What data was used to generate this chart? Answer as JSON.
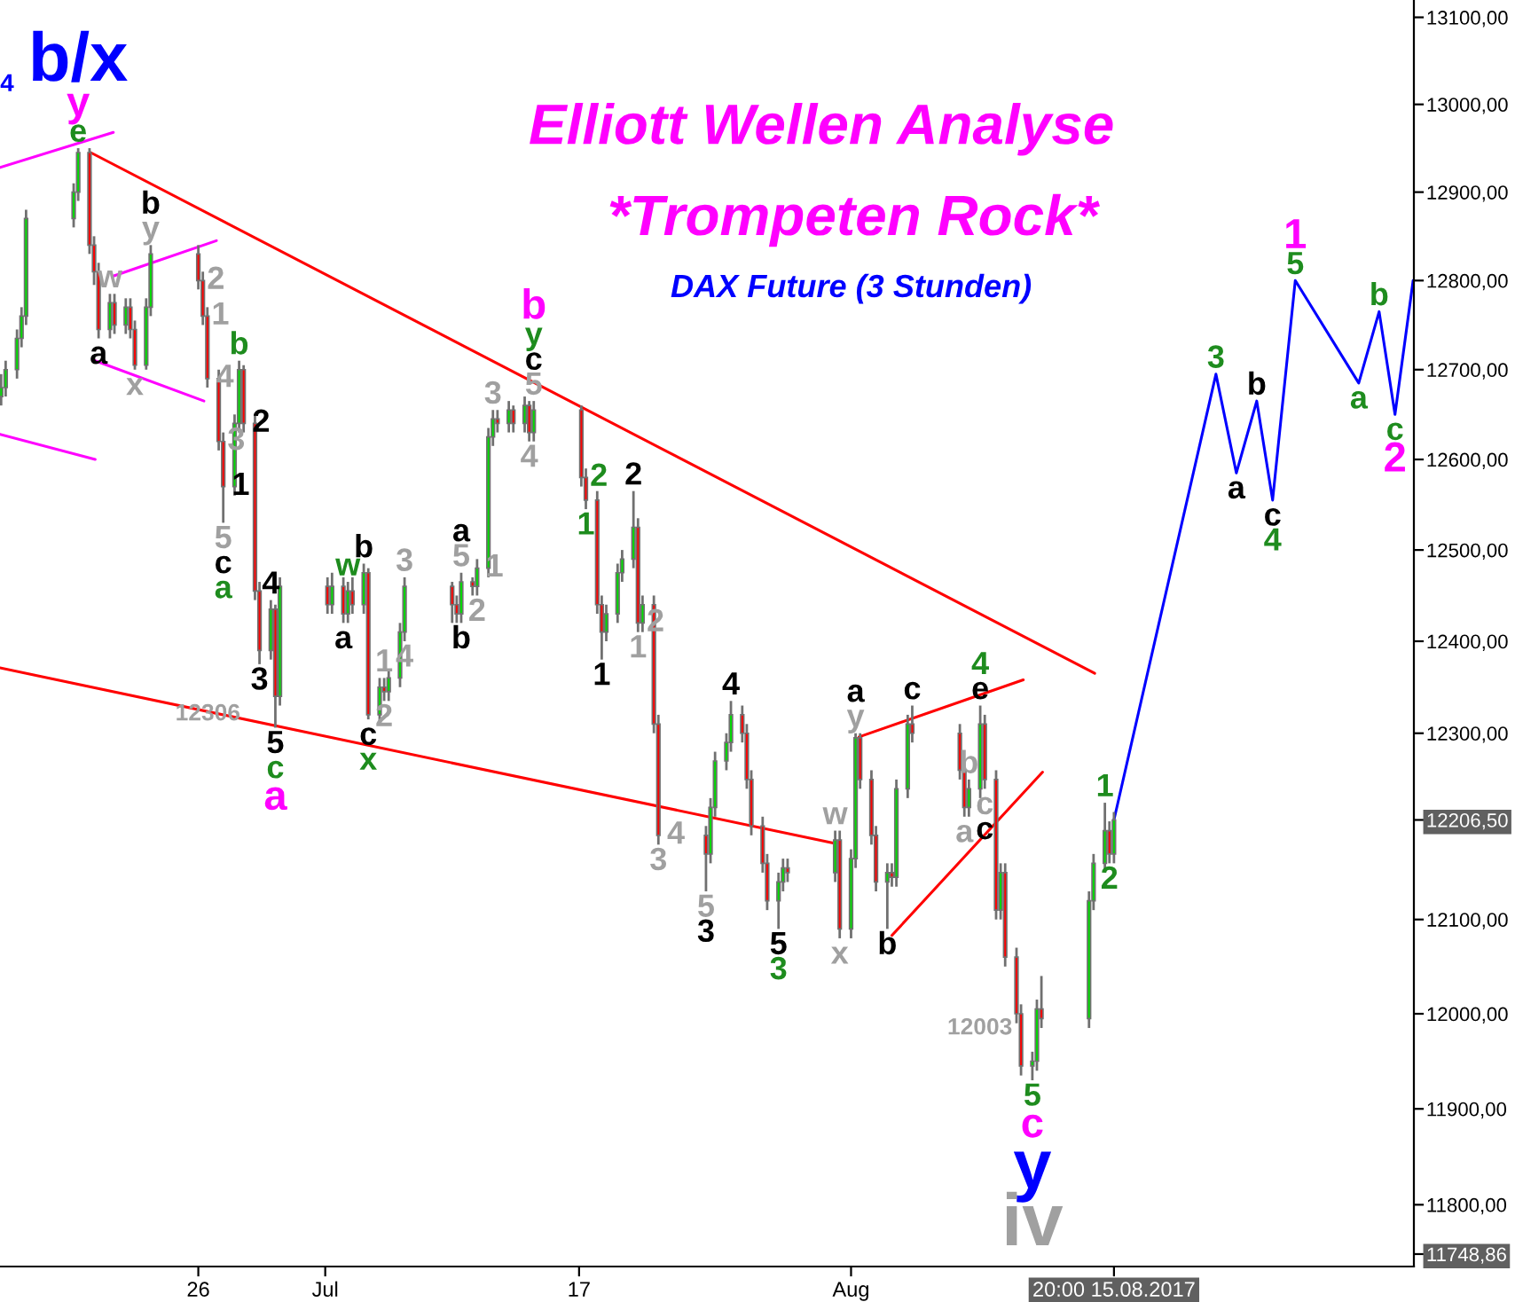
{
  "chart_data": {
    "type": "candlestick",
    "title": "Elliott Wellen Analyse",
    "subtitle": "*Trompeten Rock*",
    "x": [
      "2017-06-15T11:00",
      "2017-06-15T17:00",
      "2017-06-16T08:00",
      "2017-06-16T14:00",
      "2017-06-16T20:00",
      "2017-06-19T11:00",
      "2017-06-19T17:00",
      "2017-06-20T08:00",
      "2017-06-20T14:00",
      "2017-06-20T20:00",
      "2017-06-21T11:00",
      "2017-06-21T17:00",
      "2017-06-22T08:00",
      "2017-06-22T14:00",
      "2017-06-22T20:00",
      "2017-06-23T11:00",
      "2017-06-23T17:00",
      "2017-06-26T08:00",
      "2017-06-26T14:00",
      "2017-06-26T20:00",
      "2017-06-27T11:00",
      "2017-06-27T17:00",
      "2017-06-28T08:00",
      "2017-06-28T14:00",
      "2017-06-28T20:00",
      "2017-06-29T11:00",
      "2017-06-29T17:00",
      "2017-06-30T08:00",
      "2017-06-30T14:00",
      "2017-06-30T20:00",
      "2017-07-03T11:00",
      "2017-07-03T17:00",
      "2017-07-04T08:00",
      "2017-07-04T14:00",
      "2017-07-04T20:00",
      "2017-07-05T11:00",
      "2017-07-05T17:00",
      "2017-07-06T08:00",
      "2017-07-06T14:00",
      "2017-07-06T20:00",
      "2017-07-07T11:00",
      "2017-07-07T17:00",
      "2017-07-10T08:00",
      "2017-07-10T14:00",
      "2017-07-10T20:00",
      "2017-07-11T11:00",
      "2017-07-11T17:00",
      "2017-07-12T08:00",
      "2017-07-12T14:00",
      "2017-07-12T20:00",
      "2017-07-13T11:00",
      "2017-07-13T17:00",
      "2017-07-14T08:00",
      "2017-07-14T14:00",
      "2017-07-14T20:00",
      "2017-07-17T11:00",
      "2017-07-17T17:00",
      "2017-07-18T08:00",
      "2017-07-18T14:00",
      "2017-07-18T20:00",
      "2017-07-19T11:00",
      "2017-07-19T17:00",
      "2017-07-20T08:00",
      "2017-07-20T14:00",
      "2017-07-20T20:00",
      "2017-07-21T11:00",
      "2017-07-21T17:00",
      "2017-07-24T08:00",
      "2017-07-24T14:00",
      "2017-07-24T20:00",
      "2017-07-25T11:00",
      "2017-07-25T17:00",
      "2017-07-26T08:00",
      "2017-07-26T14:00",
      "2017-07-26T20:00",
      "2017-07-27T11:00",
      "2017-07-27T17:00",
      "2017-07-28T08:00",
      "2017-07-28T14:00",
      "2017-07-28T20:00",
      "2017-07-31T11:00",
      "2017-07-31T17:00",
      "2017-08-01T08:00",
      "2017-08-01T14:00",
      "2017-08-01T20:00",
      "2017-08-02T11:00",
      "2017-08-02T17:00",
      "2017-08-03T08:00",
      "2017-08-03T14:00",
      "2017-08-03T20:00",
      "2017-08-04T11:00",
      "2017-08-04T17:00",
      "2017-08-07T08:00",
      "2017-08-07T14:00",
      "2017-08-07T20:00",
      "2017-08-08T11:00",
      "2017-08-08T17:00",
      "2017-08-09T08:00",
      "2017-08-09T14:00",
      "2017-08-09T20:00",
      "2017-08-10T11:00",
      "2017-08-10T17:00",
      "2017-08-11T08:00",
      "2017-08-11T14:00",
      "2017-08-11T20:00",
      "2017-08-14T11:00",
      "2017-08-14T17:00",
      "2017-08-15T08:00",
      "2017-08-15T14:00",
      "2017-08-15T20:00"
    ],
    "ohlc": [
      [
        12670,
        12695,
        12660,
        12680
      ],
      [
        12680,
        12710,
        12670,
        12700
      ],
      [
        12700,
        12745,
        12690,
        12735
      ],
      [
        12735,
        12770,
        12725,
        12760
      ],
      [
        12760,
        12880,
        12750,
        12870
      ],
      [
        12870,
        12910,
        12860,
        12900
      ],
      [
        12900,
        12950,
        12890,
        12945
      ],
      [
        12945,
        12950,
        12830,
        12840
      ],
      [
        12840,
        12850,
        12795,
        12810
      ],
      [
        12810,
        12820,
        12735,
        12745
      ],
      [
        12745,
        12785,
        12735,
        12775
      ],
      [
        12775,
        12785,
        12740,
        12750
      ],
      [
        12750,
        12780,
        12740,
        12770
      ],
      [
        12770,
        12780,
        12735,
        12745
      ],
      [
        12745,
        12755,
        12700,
        12705
      ],
      [
        12705,
        12780,
        12700,
        12770
      ],
      [
        12770,
        12840,
        12760,
        12830
      ],
      [
        12830,
        12840,
        12790,
        12800
      ],
      [
        12800,
        12810,
        12750,
        12760
      ],
      [
        12760,
        12770,
        12680,
        12690
      ],
      [
        12690,
        12700,
        12610,
        12620
      ],
      [
        12620,
        12630,
        12530,
        12570
      ],
      [
        12570,
        12650,
        12560,
        12640
      ],
      [
        12640,
        12710,
        12630,
        12700
      ],
      [
        12700,
        12705,
        12630,
        12640
      ],
      [
        12640,
        12650,
        12445,
        12455
      ],
      [
        12455,
        12465,
        12375,
        12390
      ],
      [
        12390,
        12445,
        12380,
        12435
      ],
      [
        12435,
        12440,
        12306,
        12340
      ],
      [
        12340,
        12470,
        12330,
        12460
      ],
      [
        12460,
        12470,
        12430,
        12440
      ],
      [
        12440,
        12475,
        12430,
        12460
      ],
      [
        12460,
        12470,
        12420,
        12430
      ],
      [
        12430,
        12465,
        12420,
        12455
      ],
      [
        12455,
        12470,
        12430,
        12440
      ],
      [
        12440,
        12485,
        12430,
        12475
      ],
      [
        12475,
        12480,
        12315,
        12320
      ],
      [
        12320,
        12360,
        12310,
        12350
      ],
      [
        12350,
        12360,
        12335,
        12345
      ],
      [
        12345,
        12370,
        12335,
        12360
      ],
      [
        12360,
        12420,
        12350,
        12410
      ],
      [
        12410,
        12470,
        12400,
        12460
      ],
      [
        12460,
        12465,
        12420,
        12440
      ],
      [
        12440,
        12450,
        12420,
        12430
      ],
      [
        12430,
        12475,
        12420,
        12465
      ],
      [
        12465,
        12470,
        12450,
        12460
      ],
      [
        12460,
        12490,
        12450,
        12480
      ],
      [
        12480,
        12635,
        12470,
        12625
      ],
      [
        12625,
        12655,
        12615,
        12645
      ],
      [
        12645,
        12655,
        12630,
        12640
      ],
      [
        12640,
        12665,
        12630,
        12655
      ],
      [
        12655,
        12660,
        12630,
        12640
      ],
      [
        12640,
        12670,
        12630,
        12660
      ],
      [
        12660,
        12665,
        12620,
        12630
      ],
      [
        12630,
        12665,
        12620,
        12655
      ],
      [
        12655,
        12660,
        12570,
        12580
      ],
      [
        12580,
        12590,
        12545,
        12555
      ],
      [
        12555,
        12565,
        12430,
        12440
      ],
      [
        12440,
        12450,
        12380,
        12410
      ],
      [
        12410,
        12440,
        12400,
        12430
      ],
      [
        12430,
        12485,
        12420,
        12475
      ],
      [
        12475,
        12500,
        12465,
        12490
      ],
      [
        12490,
        12565,
        12480,
        12525
      ],
      [
        12525,
        12535,
        12410,
        12420
      ],
      [
        12420,
        12450,
        12410,
        12440
      ],
      [
        12440,
        12450,
        12300,
        12310
      ],
      [
        12310,
        12320,
        12180,
        12190
      ],
      [
        12190,
        12200,
        12130,
        12170
      ],
      [
        12170,
        12230,
        12160,
        12220
      ],
      [
        12220,
        12280,
        12210,
        12270
      ],
      [
        12270,
        12300,
        12260,
        12290
      ],
      [
        12290,
        12335,
        12280,
        12320
      ],
      [
        12320,
        12330,
        12290,
        12300
      ],
      [
        12300,
        12310,
        12240,
        12250
      ],
      [
        12250,
        12260,
        12190,
        12200
      ],
      [
        12200,
        12210,
        12150,
        12160
      ],
      [
        12160,
        12170,
        12110,
        12120
      ],
      [
        12120,
        12150,
        12090,
        12140
      ],
      [
        12140,
        12165,
        12130,
        12155
      ],
      [
        12155,
        12165,
        12140,
        12150
      ],
      [
        12150,
        12195,
        12140,
        12185
      ],
      [
        12185,
        12195,
        12080,
        12090
      ],
      [
        12090,
        12175,
        12080,
        12165
      ],
      [
        12165,
        12300,
        12155,
        12295
      ],
      [
        12295,
        12300,
        12240,
        12250
      ],
      [
        12250,
        12260,
        12180,
        12190
      ],
      [
        12190,
        12200,
        12130,
        12140
      ],
      [
        12140,
        12160,
        12090,
        12150
      ],
      [
        12150,
        12160,
        12135,
        12145
      ],
      [
        12145,
        12250,
        12135,
        12240
      ],
      [
        12240,
        12320,
        12230,
        12310
      ],
      [
        12310,
        12330,
        12290,
        12300
      ],
      [
        12300,
        12310,
        12250,
        12260
      ],
      [
        12260,
        12270,
        12210,
        12220
      ],
      [
        12220,
        12250,
        12210,
        12240
      ],
      [
        12240,
        12330,
        12230,
        12310
      ],
      [
        12310,
        12320,
        12240,
        12250
      ],
      [
        12250,
        12260,
        12100,
        12110
      ],
      [
        12110,
        12160,
        12100,
        12150
      ],
      [
        12150,
        12160,
        12050,
        12060
      ],
      [
        12060,
        12070,
        11990,
        12000
      ],
      [
        12000,
        12010,
        11935,
        11945
      ],
      [
        11945,
        11960,
        11930,
        11950
      ],
      [
        11950,
        12015,
        11940,
        12005
      ],
      [
        12005,
        12040,
        11985,
        11995
      ],
      [
        11995,
        12130,
        11985,
        12120
      ],
      [
        12120,
        12170,
        12110,
        12160
      ],
      [
        12160,
        12225,
        12150,
        12195
      ],
      [
        12195,
        12205,
        12160,
        12170
      ],
      [
        12170,
        12215,
        12160,
        12206.5
      ]
    ],
    "series": [
      {
        "type": "line",
        "color": "#0000ff",
        "x": [
          "2017-08-15T20:00",
          "2017-08-21T11:00",
          "2017-08-22T14:00",
          "2017-08-23T17:00",
          "2017-08-24T14:00",
          "2017-08-25T20:00",
          "2017-08-29T08:00",
          "2017-08-30T11:00",
          "2017-08-31T08:00",
          "2017-09-01T08:00"
        ],
        "values": [
          12206.5,
          12695,
          12585,
          12665,
          12555,
          12800,
          12685,
          12765,
          12650,
          12800
        ]
      },
      {
        "type": "line",
        "color": "#ff0000",
        "x": [
          "2017-06-20T09:30",
          "2017-08-14T18:30"
        ],
        "values": [
          12945,
          12365
        ]
      },
      {
        "type": "line",
        "color": "#ff0000",
        "x": [
          "2017-06-15T09:30",
          "2017-07-31T12:30"
        ],
        "values": [
          12371,
          12181
        ]
      },
      {
        "type": "line",
        "color": "#ff0000",
        "x": [
          "2017-08-01T18:30",
          "2017-08-10T20:00"
        ],
        "values": [
          12296,
          12358
        ]
      },
      {
        "type": "line",
        "color": "#ff0000",
        "x": [
          "2017-08-03T14:00",
          "2017-08-11T21:30"
        ],
        "values": [
          12083,
          12258
        ]
      },
      {
        "type": "line",
        "color": "#ff00ff",
        "x": [
          "2017-06-15T09:30",
          "2017-06-21T15:30"
        ],
        "values": [
          12928,
          12968
        ]
      },
      {
        "type": "line",
        "color": "#ff00ff",
        "x": [
          "2017-06-21T15:30",
          "2017-06-27T08:00"
        ],
        "values": [
          12805,
          12845
        ]
      },
      {
        "type": "line",
        "color": "#ff00ff",
        "x": [
          "2017-06-20T15:30",
          "2017-06-26T15:30"
        ],
        "values": [
          12710,
          12665
        ]
      },
      {
        "type": "line",
        "color": "#ff00ff",
        "x": [
          "2017-06-15T09:30",
          "2017-06-20T15:30"
        ],
        "values": [
          12628,
          12600
        ]
      }
    ],
    "log": true,
    "xlim": [
      "2017-06-15T09:30",
      "2017-09-01T09:00"
    ],
    "ylim": [
      11736,
      13120
    ],
    "xticks": [
      {
        "value": "2017-06-26T08:00",
        "label": "26"
      },
      {
        "value": "2017-07-03T08:00",
        "label": "Jul"
      },
      {
        "value": "2017-07-17T08:00",
        "label": "17"
      },
      {
        "value": "2017-08-01T08:00",
        "label": "Aug"
      },
      {
        "value": "2017-08-15T20:00",
        "label": "20:00 15.08.2017"
      }
    ],
    "yticks": [
      {
        "value": 11748.86,
        "label": "11748,86"
      },
      {
        "value": 11800,
        "label": "11800,00"
      },
      {
        "value": 11900,
        "label": "11900,00"
      },
      {
        "value": 12000,
        "label": "12000,00"
      },
      {
        "value": 12100,
        "label": "12100,00"
      },
      {
        "value": 12206.5,
        "label": "12206,50"
      },
      {
        "value": 12300,
        "label": "12300,00"
      },
      {
        "value": 12400,
        "label": "12400,00"
      },
      {
        "value": 12500,
        "label": "12500,00"
      },
      {
        "value": 12600,
        "label": "12600,00"
      },
      {
        "value": 12700,
        "label": "12700,00"
      },
      {
        "value": 12800,
        "label": "12800,00"
      },
      {
        "value": 12900,
        "label": "12900,00"
      },
      {
        "value": 13000,
        "label": "13000,00"
      },
      {
        "value": 13100,
        "label": "13100,00"
      }
    ],
    "annotations": [
      "DAX Future (3 Stunden)",
      "4",
      "12306",
      "12003",
      {
        "text": "e",
        "x": "2017-06-19T17:00",
        "y": 12950
      },
      {
        "text": "y",
        "x": "2017-06-19T17:00",
        "y": 12950
      },
      {
        "text": "b/x",
        "x": "2017-06-19T17:00",
        "y": 12950
      },
      {
        "text": "y",
        "x": "2017-06-23T17:00",
        "y": 12840
      },
      {
        "text": "b",
        "x": "2017-06-23T17:00",
        "y": 12840
      },
      {
        "text": "w",
        "x": "2017-06-21T11:00",
        "y": 12785
      },
      {
        "text": "a",
        "x": "2017-06-20T20:00",
        "y": 12735
      },
      {
        "text": "x",
        "x": "2017-06-22T20:00",
        "y": 12700
      },
      {
        "text": "2",
        "x": "2017-06-26T08:00",
        "y": 12800
      },
      {
        "text": "1",
        "x": "2017-06-26T14:00",
        "y": 12760
      },
      {
        "text": "4",
        "x": "2017-06-26T20:00",
        "y": 12690
      },
      {
        "text": "3",
        "x": "2017-06-27T11:00",
        "y": 12620
      },
      {
        "text": "5",
        "x": "2017-06-27T17:00",
        "y": 12530
      },
      {
        "text": "c",
        "x": "2017-06-27T17:00",
        "y": 12530
      },
      {
        "text": "a",
        "x": "2017-06-27T17:00",
        "y": 12530
      },
      {
        "text": "1",
        "x": "2017-06-27T17:00",
        "y": 12570
      },
      {
        "text": "b",
        "x": "2017-06-28T14:00",
        "y": 12710
      },
      {
        "text": "2",
        "x": "2017-06-28T20:00",
        "y": 12640
      },
      {
        "text": "4",
        "x": "2017-06-30T08:00",
        "y": 12445
      },
      {
        "text": "3",
        "x": "2017-06-29T17:00",
        "y": 12375
      },
      {
        "text": "5",
        "x": "2017-06-30T14:00",
        "y": 12306
      },
      {
        "text": "c",
        "x": "2017-06-30T14:00",
        "y": 12306
      },
      {
        "text": "a",
        "x": "2017-06-30T14:00",
        "y": 12306
      },
      {
        "text": "w",
        "x": "2017-07-04T14:00",
        "y": 12465
      },
      {
        "text": "b",
        "x": "2017-07-05T11:00",
        "y": 12485
      },
      {
        "text": "a",
        "x": "2017-07-04T08:00",
        "y": 12420
      },
      {
        "text": "c",
        "x": "2017-07-05T17:00",
        "y": 12315
      },
      {
        "text": "x",
        "x": "2017-07-05T17:00",
        "y": 12315
      },
      {
        "text": "1",
        "x": "2017-07-06T14:00",
        "y": 12360
      },
      {
        "text": "2",
        "x": "2017-07-06T14:00",
        "y": 12335
      },
      {
        "text": "3",
        "x": "2017-07-07T17:00",
        "y": 12470
      },
      {
        "text": "4",
        "x": "2017-07-07T17:00",
        "y": 12400
      },
      {
        "text": "5",
        "x": "2017-07-10T20:00",
        "y": 12475
      },
      {
        "text": "a",
        "x": "2017-07-10T20:00",
        "y": 12475
      },
      {
        "text": "b",
        "x": "2017-07-10T20:00",
        "y": 12420
      },
      {
        "text": "1",
        "x": "2017-07-11T17:00",
        "y": 12480
      },
      {
        "text": "2",
        "x": "2017-07-11T17:00",
        "y": 12450
      },
      {
        "text": "3",
        "x": "2017-07-12T14:00",
        "y": 12655
      },
      {
        "text": "5",
        "x": "2017-07-14T20:00",
        "y": 12665
      },
      {
        "text": "c",
        "x": "2017-07-14T20:00",
        "y": 12665
      },
      {
        "text": "y",
        "x": "2017-07-14T20:00",
        "y": 12665
      },
      {
        "text": "b",
        "x": "2017-07-14T20:00",
        "y": 12665
      },
      {
        "text": "4",
        "x": "2017-07-14T14:00",
        "y": 12620
      },
      {
        "text": "2",
        "x": "2017-07-17T11:00",
        "y": 12580
      },
      {
        "text": "1",
        "x": "2017-07-17T17:00",
        "y": 12545
      },
      {
        "text": "2",
        "x": "2017-07-20T08:00",
        "y": 12565
      },
      {
        "text": "1",
        "x": "2017-07-18T14:00",
        "y": 12380
      },
      {
        "text": "2",
        "x": "2017-07-20T14:00",
        "y": 12420
      },
      {
        "text": "1",
        "x": "2017-07-20T14:00",
        "y": 12410
      },
      {
        "text": "4",
        "x": "2017-07-25T17:00",
        "y": 12335
      },
      {
        "text": "4",
        "x": "2017-07-21T17:00",
        "y": 12190
      },
      {
        "text": "3",
        "x": "2017-07-21T17:00",
        "y": 12180
      },
      {
        "text": "5",
        "x": "2017-07-24T08:00",
        "y": 12130
      },
      {
        "text": "3",
        "x": "2017-07-24T08:00",
        "y": 12130
      },
      {
        "text": "5",
        "x": "2017-07-28T08:00",
        "y": 12090
      },
      {
        "text": "3",
        "x": "2017-07-28T08:00",
        "y": 12090
      },
      {
        "text": "w",
        "x": "2017-07-31T11:00",
        "y": 12195
      },
      {
        "text": "x",
        "x": "2017-07-31T17:00",
        "y": 12080
      },
      {
        "text": "y",
        "x": "2017-08-01T14:00",
        "y": 12300
      },
      {
        "text": "a",
        "x": "2017-08-01T14:00",
        "y": 12300
      },
      {
        "text": "b",
        "x": "2017-08-03T08:00",
        "y": 12090
      },
      {
        "text": "c",
        "x": "2017-08-04T17:00",
        "y": 12330
      },
      {
        "text": "e",
        "x": "2017-08-08T11:00",
        "y": 12330
      },
      {
        "text": "4",
        "x": "2017-08-08T11:00",
        "y": 12330
      },
      {
        "text": "b",
        "x": "2017-08-07T20:00",
        "y": 12250
      },
      {
        "text": "a",
        "x": "2017-08-07T14:00",
        "y": 12210
      },
      {
        "text": "c",
        "x": "2017-08-08T17:00",
        "y": 12240
      },
      {
        "text": "c",
        "x": "2017-08-08T17:00",
        "y": 12240
      },
      {
        "text": "5",
        "x": "2017-08-11T08:00",
        "y": 11930
      },
      {
        "text": "c",
        "x": "2017-08-11T08:00",
        "y": 11930
      },
      {
        "text": "y",
        "x": "2017-08-11T08:00",
        "y": 11930
      },
      {
        "text": "iv",
        "x": "2017-08-11T08:00",
        "y": 11930
      },
      {
        "text": "1",
        "x": "2017-08-15T08:00",
        "y": 12225
      },
      {
        "text": "2",
        "x": "2017-08-15T14:00",
        "y": 12160
      },
      {
        "text": "3",
        "x": "2017-08-21T11:00",
        "y": 12695
      },
      {
        "text": "a",
        "x": "2017-08-22T14:00",
        "y": 12585
      },
      {
        "text": "b",
        "x": "2017-08-23T17:00",
        "y": 12665
      },
      {
        "text": "c",
        "x": "2017-08-24T14:00",
        "y": 12555
      },
      {
        "text": "4",
        "x": "2017-08-24T14:00",
        "y": 12555
      },
      {
        "text": "5",
        "x": "2017-08-25T20:00",
        "y": 12800
      },
      {
        "text": "1",
        "x": "2017-08-25T20:00",
        "y": 12800
      },
      {
        "text": "a",
        "x": "2017-08-29T08:00",
        "y": 12685
      },
      {
        "text": "b",
        "x": "2017-08-30T11:00",
        "y": 12765
      },
      {
        "text": "c",
        "x": "2017-08-31T08:00",
        "y": 12650
      },
      {
        "text": "2",
        "x": "2017-08-31T08:00",
        "y": 12650
      }
    ]
  }
}
